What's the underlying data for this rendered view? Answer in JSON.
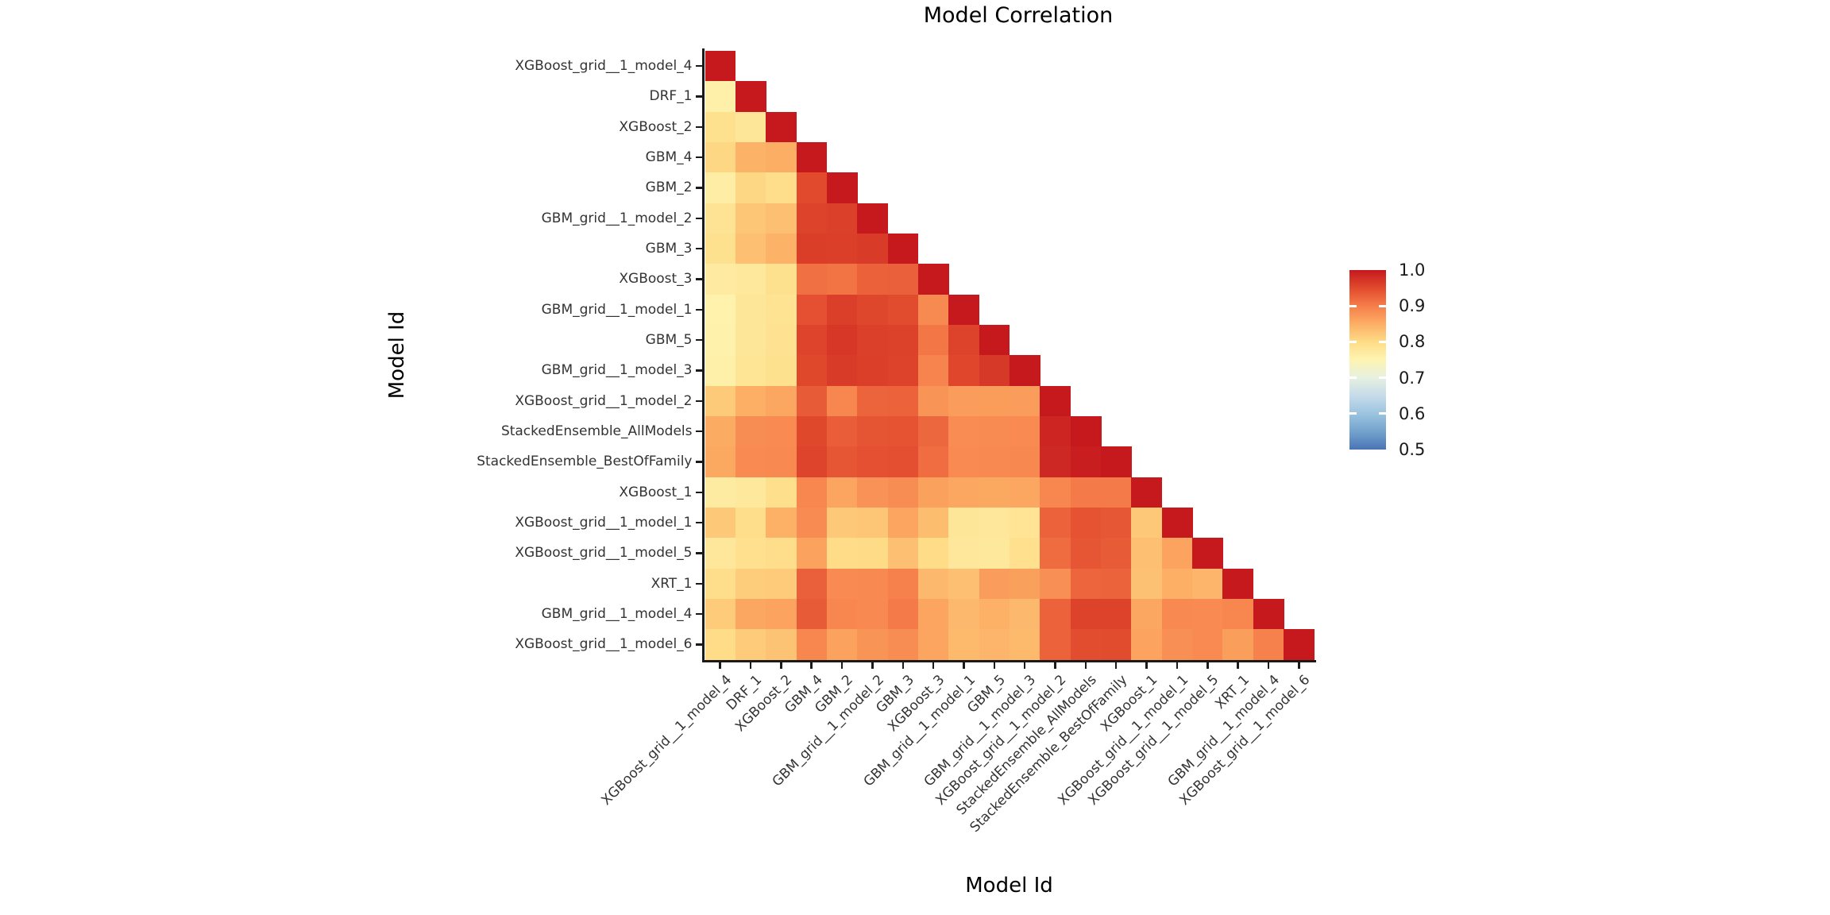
{
  "title": "Model Correlation",
  "x_axis_label": "Model Id",
  "y_axis_label": "Model Id",
  "chart_data": {
    "type": "heatmap",
    "title": "Model Correlation",
    "xlabel": "Model Id",
    "ylabel": "Model Id",
    "triangle": "lower",
    "grid": false,
    "legend_position": "right",
    "value_range": [
      0.5,
      1.0
    ],
    "legend_ticks": [
      "1.0",
      "0.9",
      "0.8",
      "0.7",
      "0.6",
      "0.5"
    ],
    "colormap": [
      [
        1.0,
        "#C5191E"
      ],
      [
        0.95,
        "#E14A2D"
      ],
      [
        0.9,
        "#F67E4B"
      ],
      [
        0.85,
        "#FCAE64"
      ],
      [
        0.8,
        "#FEDC87"
      ],
      [
        0.75,
        "#FEF4B1"
      ],
      [
        0.7,
        "#E7F1E0"
      ],
      [
        0.65,
        "#C6DBEA"
      ],
      [
        0.6,
        "#9CC4DF"
      ],
      [
        0.55,
        "#73A2CD"
      ],
      [
        0.5,
        "#4A74B5"
      ]
    ],
    "models": [
      "XGBoost_grid__1_model_4",
      "DRF_1",
      "XGBoost_2",
      "GBM_4",
      "GBM_2",
      "GBM_grid__1_model_2",
      "GBM_3",
      "XGBoost_3",
      "GBM_grid__1_model_1",
      "GBM_5",
      "GBM_grid__1_model_3",
      "XGBoost_grid__1_model_2",
      "StackedEnsemble_AllModels",
      "StackedEnsemble_BestOfFamily",
      "XGBoost_1",
      "XGBoost_grid__1_model_1",
      "XGBoost_grid__1_model_5",
      "XRT_1",
      "GBM_grid__1_model_4",
      "XGBoost_grid__1_model_6"
    ],
    "matrix": [
      [
        1.0
      ],
      [
        0.76,
        1.0
      ],
      [
        0.79,
        0.78,
        1.0
      ],
      [
        0.805,
        0.845,
        0.85,
        1.0
      ],
      [
        0.765,
        0.805,
        0.795,
        0.95,
        1.0
      ],
      [
        0.785,
        0.825,
        0.83,
        0.957,
        0.96,
        1.0
      ],
      [
        0.79,
        0.83,
        0.845,
        0.962,
        0.961,
        0.965,
        1.0
      ],
      [
        0.77,
        0.776,
        0.79,
        0.913,
        0.91,
        0.928,
        0.929,
        1.0
      ],
      [
        0.755,
        0.779,
        0.786,
        0.944,
        0.961,
        0.953,
        0.949,
        0.888,
        1.0
      ],
      [
        0.756,
        0.78,
        0.787,
        0.956,
        0.969,
        0.96,
        0.959,
        0.908,
        0.957,
        1.0
      ],
      [
        0.759,
        0.782,
        0.79,
        0.952,
        0.965,
        0.961,
        0.958,
        0.894,
        0.954,
        0.967,
        1.0
      ],
      [
        0.82,
        0.849,
        0.857,
        0.934,
        0.892,
        0.925,
        0.927,
        0.877,
        0.869,
        0.868,
        0.869,
        1.0
      ],
      [
        0.853,
        0.884,
        0.887,
        0.952,
        0.931,
        0.94,
        0.941,
        0.922,
        0.885,
        0.886,
        0.887,
        0.988,
        1.0
      ],
      [
        0.856,
        0.887,
        0.889,
        0.956,
        0.939,
        0.944,
        0.945,
        0.916,
        0.887,
        0.889,
        0.89,
        0.985,
        0.995,
        1.0
      ],
      [
        0.768,
        0.775,
        0.794,
        0.892,
        0.859,
        0.879,
        0.884,
        0.864,
        0.857,
        0.856,
        0.857,
        0.892,
        0.904,
        0.904,
        1.0
      ],
      [
        0.822,
        0.796,
        0.847,
        0.886,
        0.821,
        0.824,
        0.859,
        0.834,
        0.779,
        0.777,
        0.784,
        0.927,
        0.941,
        0.937,
        0.821,
        1.0
      ],
      [
        0.777,
        0.792,
        0.795,
        0.862,
        0.799,
        0.801,
        0.831,
        0.799,
        0.777,
        0.776,
        0.791,
        0.917,
        0.939,
        0.934,
        0.832,
        0.861,
        1.0
      ],
      [
        0.796,
        0.816,
        0.819,
        0.929,
        0.887,
        0.889,
        0.897,
        0.839,
        0.832,
        0.869,
        0.865,
        0.882,
        0.924,
        0.926,
        0.829,
        0.849,
        0.842,
        1.0
      ],
      [
        0.819,
        0.857,
        0.861,
        0.934,
        0.892,
        0.889,
        0.904,
        0.859,
        0.839,
        0.847,
        0.839,
        0.927,
        0.957,
        0.957,
        0.857,
        0.889,
        0.887,
        0.892,
        1.0
      ],
      [
        0.799,
        0.819,
        0.827,
        0.892,
        0.862,
        0.877,
        0.884,
        0.859,
        0.837,
        0.842,
        0.837,
        0.927,
        0.947,
        0.949,
        0.861,
        0.881,
        0.887,
        0.867,
        0.897,
        1.0
      ]
    ]
  }
}
